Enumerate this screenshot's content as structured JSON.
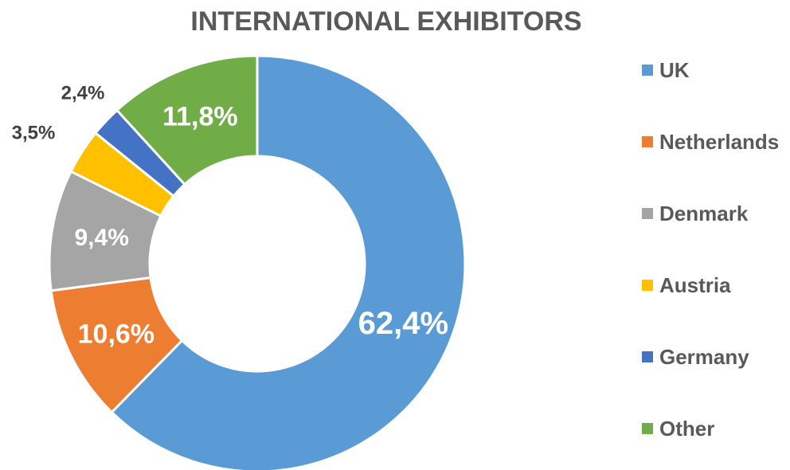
{
  "chart_data": {
    "type": "pie",
    "variant": "donut",
    "title": "INTERNATIONAL EXHIBITORS",
    "categories": [
      "UK",
      "Netherlands",
      "Denmark",
      "Austria",
      "Germany",
      "Other"
    ],
    "values": [
      62.4,
      10.6,
      9.4,
      3.5,
      2.4,
      11.8
    ],
    "labels": [
      "62,4%",
      "10,6%",
      "9,4%",
      "3,5%",
      "2,4%",
      "11,8%"
    ],
    "colors": [
      "#5B9BD5",
      "#ED7D31",
      "#A5A5A5",
      "#FFC000",
      "#4472C4",
      "#70AD47"
    ],
    "legend": "right"
  }
}
